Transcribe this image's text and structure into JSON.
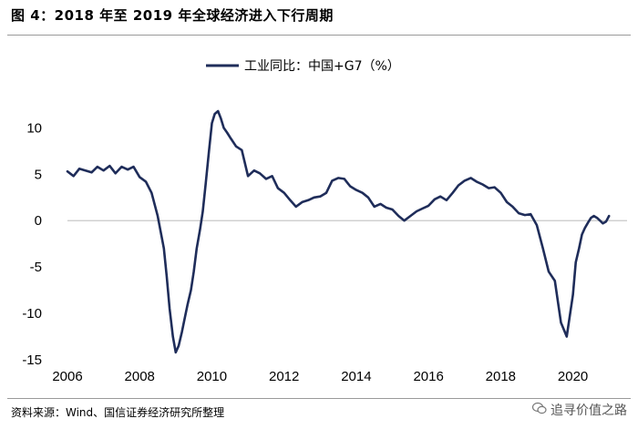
{
  "figure": {
    "title": "图 4：2018 年至 2019 年全球经济进入下行周期",
    "source": "资料来源：Wind、国信证券经济研究所整理",
    "watermark": "追寻价值之路",
    "watermark_icon": "wechat-icon"
  },
  "chart_data": {
    "type": "line",
    "legend_position": "top-center",
    "grid": false,
    "x_ticks": [
      "2006",
      "2008",
      "2010",
      "2012",
      "2014",
      "2016",
      "2018",
      "2020"
    ],
    "y_ticks": [
      "10",
      "5",
      "0",
      "-5",
      "-10",
      "-15"
    ],
    "xlim": [
      2006.0,
      2021.5
    ],
    "ylim": [
      -15,
      12
    ],
    "series": [
      {
        "name": "工业同比：中国+G7（%）",
        "color": "#1f2d5a",
        "x": [
          2006.0,
          2006.17,
          2006.33,
          2006.5,
          2006.67,
          2006.83,
          2007.0,
          2007.17,
          2007.33,
          2007.5,
          2007.67,
          2007.83,
          2008.0,
          2008.17,
          2008.33,
          2008.5,
          2008.67,
          2008.75,
          2008.83,
          2008.92,
          2009.0,
          2009.08,
          2009.17,
          2009.25,
          2009.33,
          2009.42,
          2009.5,
          2009.58,
          2009.67,
          2009.75,
          2009.83,
          2009.92,
          2010.0,
          2010.08,
          2010.17,
          2010.25,
          2010.33,
          2010.42,
          2010.5,
          2010.67,
          2010.83,
          2011.0,
          2011.17,
          2011.33,
          2011.5,
          2011.67,
          2011.83,
          2012.0,
          2012.17,
          2012.33,
          2012.5,
          2012.67,
          2012.83,
          2013.0,
          2013.17,
          2013.33,
          2013.5,
          2013.67,
          2013.83,
          2014.0,
          2014.17,
          2014.33,
          2014.5,
          2014.67,
          2014.83,
          2015.0,
          2015.17,
          2015.33,
          2015.5,
          2015.67,
          2015.83,
          2016.0,
          2016.17,
          2016.33,
          2016.5,
          2016.67,
          2016.83,
          2017.0,
          2017.17,
          2017.33,
          2017.5,
          2017.67,
          2017.83,
          2018.0,
          2018.17,
          2018.33,
          2018.5,
          2018.67,
          2018.83,
          2019.0,
          2019.17,
          2019.33,
          2019.5,
          2019.67,
          2019.83,
          2020.0,
          2020.08,
          2020.17,
          2020.25,
          2020.33,
          2020.42,
          2020.5,
          2020.58,
          2020.67,
          2020.75,
          2020.83,
          2020.92,
          2021.0
        ],
        "values": [
          5.3,
          4.8,
          5.6,
          5.4,
          5.2,
          5.8,
          5.4,
          5.9,
          5.1,
          5.8,
          5.5,
          5.8,
          4.7,
          4.2,
          3.0,
          0.5,
          -3.0,
          -6.0,
          -9.5,
          -12.5,
          -14.2,
          -13.5,
          -12.0,
          -10.5,
          -9.0,
          -7.5,
          -5.5,
          -3.0,
          -1.0,
          1.0,
          4.0,
          7.5,
          10.5,
          11.5,
          11.8,
          11.0,
          10.0,
          9.5,
          9.0,
          8.0,
          7.6,
          4.8,
          5.4,
          5.1,
          4.5,
          4.8,
          3.5,
          3.0,
          2.2,
          1.5,
          2.0,
          2.2,
          2.5,
          2.6,
          3.0,
          4.3,
          4.6,
          4.5,
          3.7,
          3.3,
          3.0,
          2.5,
          1.5,
          1.8,
          1.4,
          1.2,
          0.5,
          0.0,
          0.5,
          1.0,
          1.3,
          1.6,
          2.3,
          2.6,
          2.2,
          3.0,
          3.8,
          4.3,
          4.6,
          4.2,
          3.9,
          3.5,
          3.6,
          3.0,
          2.0,
          1.5,
          0.8,
          0.6,
          0.7,
          -0.5,
          -3.0,
          -5.5,
          -6.5,
          -11.0,
          -12.5,
          -8.0,
          -4.5,
          -3.0,
          -1.5,
          -0.8,
          -0.2,
          0.3,
          0.5,
          0.3,
          0.0,
          -0.3,
          -0.1,
          0.5
        ]
      }
    ]
  }
}
